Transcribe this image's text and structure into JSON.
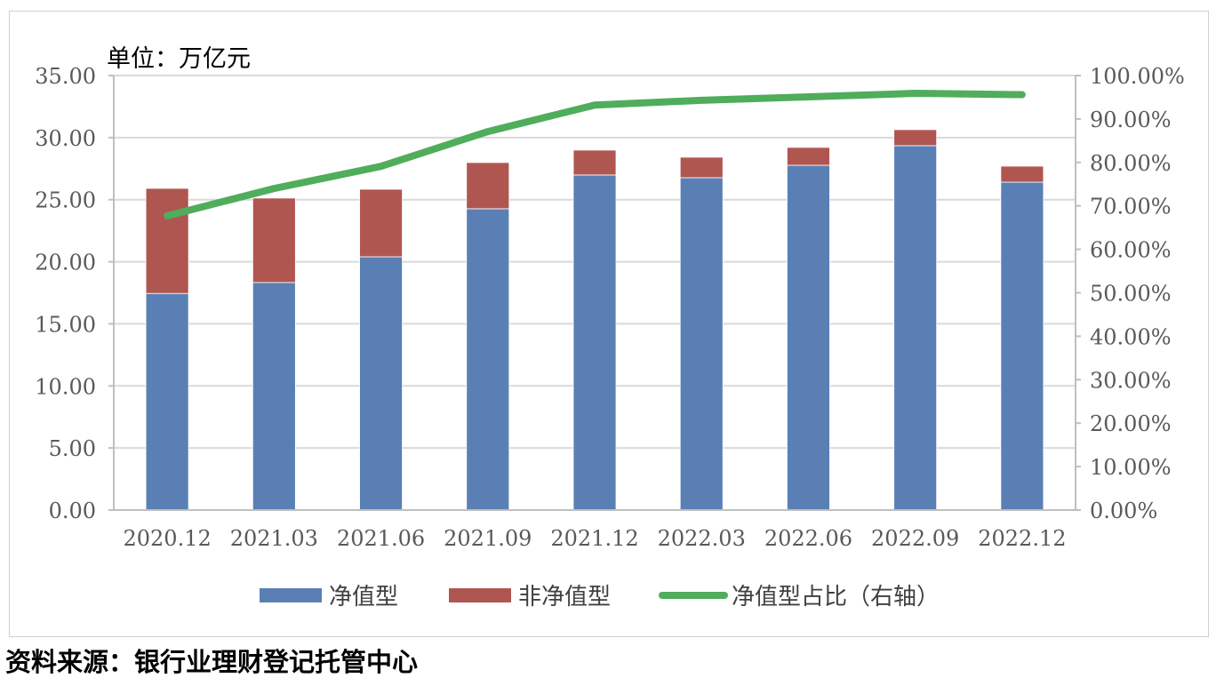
{
  "chart_data": {
    "type": "bar",
    "stacked": true,
    "unit_label": "单位：万亿元",
    "categories": [
      "2020.12",
      "2021.03",
      "2021.06",
      "2021.09",
      "2021.12",
      "2022.03",
      "2022.06",
      "2022.09",
      "2022.12"
    ],
    "series": [
      {
        "name": "净值型",
        "type": "bar",
        "axis": "left",
        "color": "#5a7fb5",
        "values": [
          17.45,
          18.33,
          20.4,
          24.27,
          26.99,
          26.77,
          27.77,
          29.35,
          26.41
        ]
      },
      {
        "name": "非净值型",
        "type": "bar",
        "axis": "left",
        "color": "#b05651",
        "values": [
          8.46,
          6.8,
          5.44,
          3.72,
          2.0,
          1.65,
          1.44,
          1.29,
          1.29
        ]
      },
      {
        "name": "净值型占比（右轴）",
        "type": "line",
        "axis": "right",
        "color": "#4fad5b",
        "values": [
          67.7,
          74.0,
          79.1,
          87.1,
          93.2,
          94.3,
          95.1,
          95.9,
          95.6
        ]
      }
    ],
    "left_axis": {
      "ylim": [
        0,
        35
      ],
      "ticks": [
        "0.00",
        "5.00",
        "10.00",
        "15.00",
        "20.00",
        "25.00",
        "30.00",
        "35.00"
      ]
    },
    "right_axis": {
      "ylim": [
        0,
        100
      ],
      "ticks": [
        "0.00%",
        "10.00%",
        "20.00%",
        "30.00%",
        "40.00%",
        "50.00%",
        "60.00%",
        "70.00%",
        "80.00%",
        "90.00%",
        "100.00%"
      ]
    },
    "grid": true,
    "legend_position": "bottom"
  },
  "source": "资料来源：银行业理财登记托管中心"
}
